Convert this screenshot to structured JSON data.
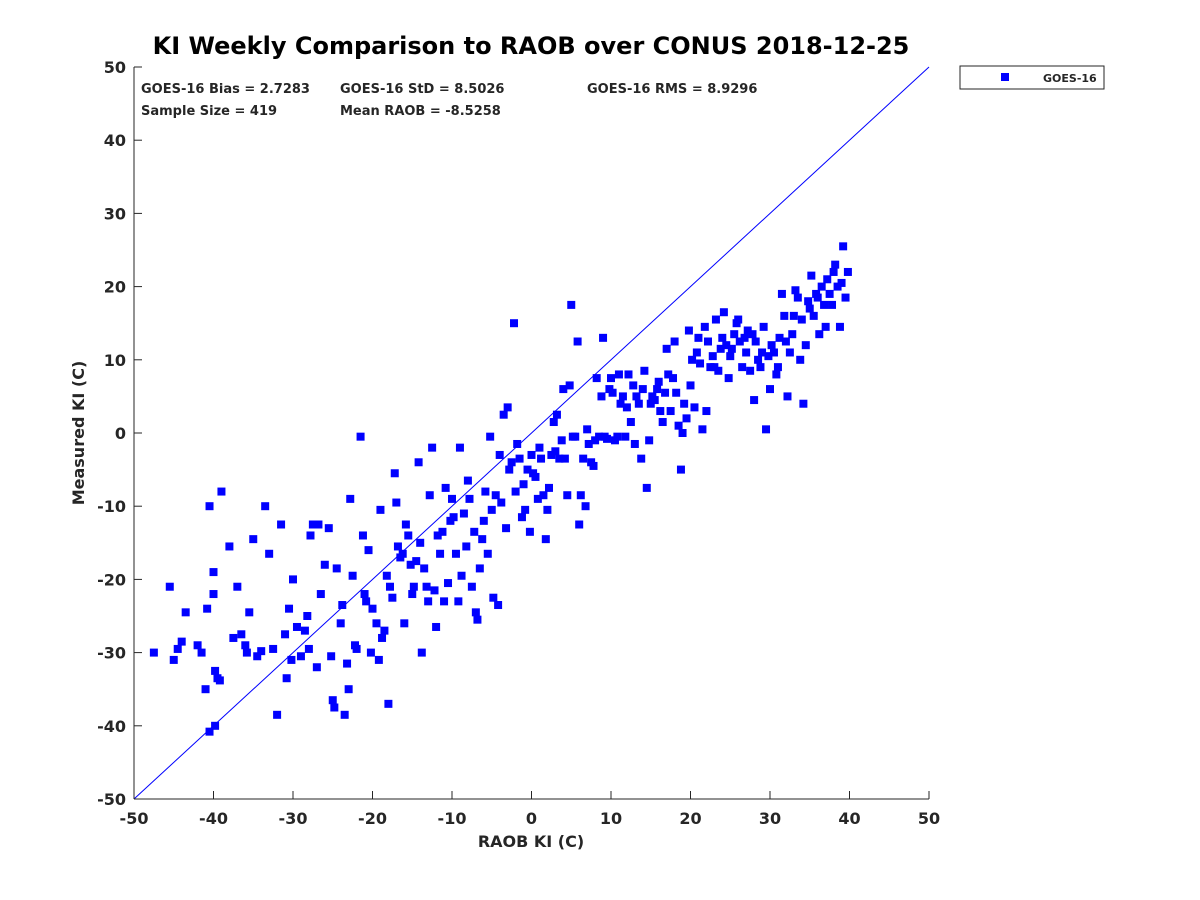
{
  "chart_data": {
    "type": "scatter",
    "title": "KI Weekly Comparison to RAOB over CONUS 2018-12-25",
    "xlabel": "RAOB KI (C)",
    "ylabel": "Measured KI (C)",
    "xlim": [
      -50,
      50
    ],
    "ylim": [
      -50,
      50
    ],
    "xticks": [
      -50,
      -40,
      -30,
      -20,
      -10,
      0,
      10,
      20,
      30,
      40,
      50
    ],
    "yticks": [
      -50,
      -40,
      -30,
      -20,
      -10,
      0,
      10,
      20,
      30,
      40,
      50
    ],
    "legend_position": "outside-top-right",
    "reference_line": "y = x",
    "colors": {
      "series": "#0000ff",
      "line": "#0000ff",
      "axis": "#262626"
    },
    "stats": {
      "bias": "GOES-16 Bias = 2.7283",
      "std": "GOES-16 StD = 8.5026",
      "rms": "GOES-16 RMS = 8.9296",
      "sample": "Sample Size = 419",
      "mean": "Mean RAOB = -8.5258"
    },
    "series": [
      {
        "name": "GOES-16",
        "points": [
          [
            -47.5,
            -30.0
          ],
          [
            -45.5,
            -21.0
          ],
          [
            -45.0,
            -31.0
          ],
          [
            -44.5,
            -29.5
          ],
          [
            -44.0,
            -28.5
          ],
          [
            -43.5,
            -24.5
          ],
          [
            -42.0,
            -29.0
          ],
          [
            -41.5,
            -30.0
          ],
          [
            -41.0,
            -35.0
          ],
          [
            -40.8,
            -24.0
          ],
          [
            -40.5,
            -10.0
          ],
          [
            -40.0,
            -19.0
          ],
          [
            -40.0,
            -22.0
          ],
          [
            -39.8,
            -32.5
          ],
          [
            -39.5,
            -33.5
          ],
          [
            -39.2,
            -33.8
          ],
          [
            -39.0,
            -8.0
          ],
          [
            -40.5,
            -40.8
          ],
          [
            -39.8,
            -40.0
          ],
          [
            -38.0,
            -15.5
          ],
          [
            -37.5,
            -28.0
          ],
          [
            -37.0,
            -21.0
          ],
          [
            -36.5,
            -27.5
          ],
          [
            -36.0,
            -29.0
          ],
          [
            -35.8,
            -30.0
          ],
          [
            -35.5,
            -24.5
          ],
          [
            -35.0,
            -14.5
          ],
          [
            -34.5,
            -30.5
          ],
          [
            -34.0,
            -29.8
          ],
          [
            -33.5,
            -10.0
          ],
          [
            -33.0,
            -16.5
          ],
          [
            -32.5,
            -29.5
          ],
          [
            -32.0,
            -38.5
          ],
          [
            -31.5,
            -12.5
          ],
          [
            -31.0,
            -27.5
          ],
          [
            -30.8,
            -33.5
          ],
          [
            -30.5,
            -24.0
          ],
          [
            -30.2,
            -31.0
          ],
          [
            -30.0,
            -20.0
          ],
          [
            -29.5,
            -26.5
          ],
          [
            -29.0,
            -30.5
          ],
          [
            -28.5,
            -27.0
          ],
          [
            -28.2,
            -25.0
          ],
          [
            -28.0,
            -29.5
          ],
          [
            -27.8,
            -14.0
          ],
          [
            -27.5,
            -12.5
          ],
          [
            -27.0,
            -32.0
          ],
          [
            -26.8,
            -12.5
          ],
          [
            -26.5,
            -22.0
          ],
          [
            -26.0,
            -18.0
          ],
          [
            -25.5,
            -13.0
          ],
          [
            -25.2,
            -30.5
          ],
          [
            -25.0,
            -36.5
          ],
          [
            -24.8,
            -37.5
          ],
          [
            -24.5,
            -18.5
          ],
          [
            -24.0,
            -26.0
          ],
          [
            -23.8,
            -23.5
          ],
          [
            -23.5,
            -38.5
          ],
          [
            -23.2,
            -31.5
          ],
          [
            -23.0,
            -35.0
          ],
          [
            -22.8,
            -9.0
          ],
          [
            -22.5,
            -19.5
          ],
          [
            -22.2,
            -29.0
          ],
          [
            -22.0,
            -29.5
          ],
          [
            -21.5,
            -0.5
          ],
          [
            -21.2,
            -14.0
          ],
          [
            -21.0,
            -22.0
          ],
          [
            -20.8,
            -23.0
          ],
          [
            -20.5,
            -16.0
          ],
          [
            -20.2,
            -30.0
          ],
          [
            -20.0,
            -24.0
          ],
          [
            -19.5,
            -26.0
          ],
          [
            -19.2,
            -31.0
          ],
          [
            -19.0,
            -10.5
          ],
          [
            -18.8,
            -28.0
          ],
          [
            -18.5,
            -27.0
          ],
          [
            -18.2,
            -19.5
          ],
          [
            -18.0,
            -37.0
          ],
          [
            -17.8,
            -21.0
          ],
          [
            -17.5,
            -22.5
          ],
          [
            -17.2,
            -5.5
          ],
          [
            -17.0,
            -9.5
          ],
          [
            -16.8,
            -15.5
          ],
          [
            -16.5,
            -17.0
          ],
          [
            -16.2,
            -16.5
          ],
          [
            -16.0,
            -26.0
          ],
          [
            -15.8,
            -12.5
          ],
          [
            -15.5,
            -14.0
          ],
          [
            -15.2,
            -18.0
          ],
          [
            -15.0,
            -22.0
          ],
          [
            -14.8,
            -21.0
          ],
          [
            -14.5,
            -17.5
          ],
          [
            -14.2,
            -4.0
          ],
          [
            -14.0,
            -15.0
          ],
          [
            -13.8,
            -30.0
          ],
          [
            -13.5,
            -18.5
          ],
          [
            -13.2,
            -21.0
          ],
          [
            -13.0,
            -23.0
          ],
          [
            -12.8,
            -8.5
          ],
          [
            -12.5,
            -2.0
          ],
          [
            -12.2,
            -21.5
          ],
          [
            -12.0,
            -26.5
          ],
          [
            -11.8,
            -14.0
          ],
          [
            -11.5,
            -16.5
          ],
          [
            -11.2,
            -13.5
          ],
          [
            -11.0,
            -23.0
          ],
          [
            -10.8,
            -7.5
          ],
          [
            -10.5,
            -20.5
          ],
          [
            -10.2,
            -12.0
          ],
          [
            -10.0,
            -9.0
          ],
          [
            -9.8,
            -11.5
          ],
          [
            -9.5,
            -16.5
          ],
          [
            -9.2,
            -23.0
          ],
          [
            -9.0,
            -2.0
          ],
          [
            -8.8,
            -19.5
          ],
          [
            -8.5,
            -11.0
          ],
          [
            -8.2,
            -15.5
          ],
          [
            -8.0,
            -6.5
          ],
          [
            -7.8,
            -9.0
          ],
          [
            -7.5,
            -21.0
          ],
          [
            -7.2,
            -13.5
          ],
          [
            -7.0,
            -24.5
          ],
          [
            -6.8,
            -25.5
          ],
          [
            -6.5,
            -18.5
          ],
          [
            -6.2,
            -14.5
          ],
          [
            -6.0,
            -12.0
          ],
          [
            -5.8,
            -8.0
          ],
          [
            -5.5,
            -16.5
          ],
          [
            -5.2,
            -0.5
          ],
          [
            -5.0,
            -10.5
          ],
          [
            -4.8,
            -22.5
          ],
          [
            -4.5,
            -8.5
          ],
          [
            -4.2,
            -23.5
          ],
          [
            -4.0,
            -3.0
          ],
          [
            -3.8,
            -9.5
          ],
          [
            -3.5,
            2.5
          ],
          [
            -3.2,
            -13.0
          ],
          [
            -3.0,
            3.5
          ],
          [
            -2.8,
            -5.0
          ],
          [
            -2.5,
            -4.0
          ],
          [
            -2.2,
            15.0
          ],
          [
            -2.0,
            -8.0
          ],
          [
            -1.8,
            -1.5
          ],
          [
            -1.5,
            -3.5
          ],
          [
            -1.2,
            -11.5
          ],
          [
            -1.0,
            -7.0
          ],
          [
            -0.8,
            -10.5
          ],
          [
            -0.5,
            -5.0
          ],
          [
            -0.2,
            -13.5
          ],
          [
            0.0,
            -3.0
          ],
          [
            0.2,
            -5.5
          ],
          [
            0.5,
            -6.0
          ],
          [
            0.8,
            -9.0
          ],
          [
            1.0,
            -2.0
          ],
          [
            1.2,
            -3.5
          ],
          [
            1.5,
            -8.5
          ],
          [
            1.8,
            -14.5
          ],
          [
            2.0,
            -10.5
          ],
          [
            2.2,
            -7.5
          ],
          [
            2.5,
            -3.0
          ],
          [
            2.8,
            1.5
          ],
          [
            3.0,
            -2.5
          ],
          [
            3.2,
            2.5
          ],
          [
            3.5,
            -3.5
          ],
          [
            3.8,
            -1.0
          ],
          [
            4.0,
            6.0
          ],
          [
            4.2,
            -3.5
          ],
          [
            4.5,
            -8.5
          ],
          [
            4.8,
            6.5
          ],
          [
            5.0,
            17.5
          ],
          [
            5.2,
            -0.5
          ],
          [
            5.5,
            -0.5
          ],
          [
            5.8,
            12.5
          ],
          [
            6.0,
            -12.5
          ],
          [
            6.2,
            -8.5
          ],
          [
            6.5,
            -3.5
          ],
          [
            6.8,
            -10.0
          ],
          [
            7.0,
            0.5
          ],
          [
            7.2,
            -1.5
          ],
          [
            7.5,
            -4.0
          ],
          [
            7.8,
            -4.5
          ],
          [
            8.0,
            -1.0
          ],
          [
            8.2,
            7.5
          ],
          [
            8.5,
            -0.5
          ],
          [
            8.8,
            5.0
          ],
          [
            9.0,
            13.0
          ],
          [
            9.2,
            -0.5
          ],
          [
            9.5,
            -0.8
          ],
          [
            9.8,
            6.0
          ],
          [
            10.0,
            7.5
          ],
          [
            10.2,
            5.5
          ],
          [
            10.5,
            -1.0
          ],
          [
            10.8,
            -0.5
          ],
          [
            11.0,
            8.0
          ],
          [
            11.2,
            4.0
          ],
          [
            11.5,
            5.0
          ],
          [
            11.8,
            -0.5
          ],
          [
            12.0,
            3.5
          ],
          [
            12.2,
            8.0
          ],
          [
            12.5,
            1.5
          ],
          [
            12.8,
            6.5
          ],
          [
            13.0,
            -1.5
          ],
          [
            13.2,
            5.0
          ],
          [
            13.5,
            4.0
          ],
          [
            13.8,
            -3.5
          ],
          [
            14.0,
            6.0
          ],
          [
            14.2,
            8.5
          ],
          [
            14.5,
            -7.5
          ],
          [
            14.8,
            -1.0
          ],
          [
            15.0,
            4.0
          ],
          [
            15.2,
            5.0
          ],
          [
            15.5,
            4.5
          ],
          [
            15.8,
            6.0
          ],
          [
            16.0,
            7.0
          ],
          [
            16.2,
            3.0
          ],
          [
            16.5,
            1.5
          ],
          [
            16.8,
            5.5
          ],
          [
            17.0,
            11.5
          ],
          [
            17.2,
            8.0
          ],
          [
            17.5,
            3.0
          ],
          [
            17.8,
            7.5
          ],
          [
            18.0,
            12.5
          ],
          [
            18.2,
            5.5
          ],
          [
            18.5,
            1.0
          ],
          [
            18.8,
            -5.0
          ],
          [
            19.0,
            0.0
          ],
          [
            19.2,
            4.0
          ],
          [
            19.5,
            2.0
          ],
          [
            19.8,
            14.0
          ],
          [
            20.0,
            6.5
          ],
          [
            20.2,
            10.0
          ],
          [
            20.5,
            3.5
          ],
          [
            20.8,
            11.0
          ],
          [
            21.0,
            13.0
          ],
          [
            21.2,
            9.5
          ],
          [
            21.5,
            0.5
          ],
          [
            21.8,
            14.5
          ],
          [
            22.0,
            3.0
          ],
          [
            22.2,
            12.5
          ],
          [
            22.5,
            9.0
          ],
          [
            22.8,
            10.5
          ],
          [
            23.0,
            9.0
          ],
          [
            23.2,
            15.5
          ],
          [
            23.5,
            8.5
          ],
          [
            23.8,
            11.5
          ],
          [
            24.0,
            13.0
          ],
          [
            24.2,
            16.5
          ],
          [
            24.5,
            12.0
          ],
          [
            24.8,
            7.5
          ],
          [
            25.0,
            10.5
          ],
          [
            25.2,
            11.5
          ],
          [
            25.5,
            13.5
          ],
          [
            25.8,
            15.0
          ],
          [
            26.0,
            15.5
          ],
          [
            26.2,
            12.5
          ],
          [
            26.5,
            9.0
          ],
          [
            26.8,
            13.0
          ],
          [
            27.0,
            11.0
          ],
          [
            27.2,
            14.0
          ],
          [
            27.5,
            8.5
          ],
          [
            27.8,
            13.5
          ],
          [
            28.0,
            4.5
          ],
          [
            28.2,
            12.5
          ],
          [
            28.5,
            10.0
          ],
          [
            28.8,
            9.0
          ],
          [
            29.0,
            11.0
          ],
          [
            29.2,
            14.5
          ],
          [
            29.5,
            0.5
          ],
          [
            29.8,
            10.5
          ],
          [
            30.0,
            6.0
          ],
          [
            30.2,
            12.0
          ],
          [
            30.5,
            11.0
          ],
          [
            30.8,
            8.0
          ],
          [
            31.0,
            9.0
          ],
          [
            31.2,
            13.0
          ],
          [
            31.5,
            19.0
          ],
          [
            31.8,
            16.0
          ],
          [
            32.0,
            12.5
          ],
          [
            32.2,
            5.0
          ],
          [
            32.5,
            11.0
          ],
          [
            32.8,
            13.5
          ],
          [
            33.0,
            16.0
          ],
          [
            33.2,
            19.5
          ],
          [
            33.5,
            18.5
          ],
          [
            33.8,
            10.0
          ],
          [
            34.0,
            15.5
          ],
          [
            34.2,
            4.0
          ],
          [
            34.5,
            12.0
          ],
          [
            34.8,
            18.0
          ],
          [
            35.0,
            17.0
          ],
          [
            35.2,
            21.5
          ],
          [
            35.5,
            16.0
          ],
          [
            35.8,
            19.0
          ],
          [
            36.0,
            18.5
          ],
          [
            36.2,
            13.5
          ],
          [
            36.5,
            20.0
          ],
          [
            36.8,
            17.5
          ],
          [
            37.0,
            14.5
          ],
          [
            37.2,
            21.0
          ],
          [
            37.5,
            19.0
          ],
          [
            37.8,
            17.5
          ],
          [
            38.0,
            22.0
          ],
          [
            38.2,
            23.0
          ],
          [
            38.5,
            20.0
          ],
          [
            38.8,
            14.5
          ],
          [
            39.0,
            20.5
          ],
          [
            39.2,
            25.5
          ],
          [
            39.5,
            18.5
          ],
          [
            39.8,
            22.0
          ]
        ]
      }
    ]
  }
}
